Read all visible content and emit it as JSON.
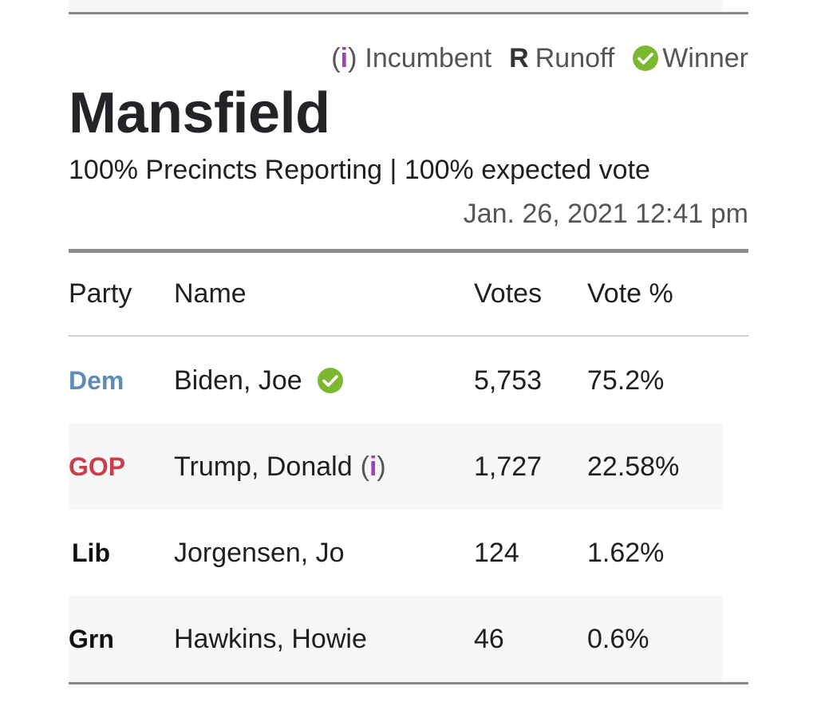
{
  "legend": {
    "incumbent_open": "(",
    "incumbent_symbol": "i",
    "incumbent_close": ")",
    "incumbent_label": "Incumbent",
    "runoff_symbol": "R",
    "runoff_label": "Runoff",
    "winner_icon": "check-circle-icon",
    "winner_label": "Winner"
  },
  "header": {
    "title": "Mansfield",
    "reporting": "100% Precincts Reporting | 100% expected vote",
    "timestamp": "Jan. 26, 2021 12:41 pm"
  },
  "table": {
    "columns": [
      "Party",
      "Name",
      "Votes",
      "Vote %"
    ],
    "rows": [
      {
        "party": "Dem",
        "name": "Biden, Joe",
        "winner": true,
        "incumbent": false,
        "votes": "5,753",
        "pct": "75.2%"
      },
      {
        "party": "GOP",
        "name": "Trump, Donald",
        "winner": false,
        "incumbent": true,
        "votes": "1,727",
        "pct": "22.58%"
      },
      {
        "party": "Lib",
        "name": "Jorgensen, Jo",
        "winner": false,
        "incumbent": false,
        "votes": "124",
        "pct": "1.62%"
      },
      {
        "party": "Grn",
        "name": "Hawkins, Howie",
        "winner": false,
        "incumbent": false,
        "votes": "46",
        "pct": "0.6%"
      }
    ]
  },
  "colors": {
    "dem": "#5b8db8",
    "gop": "#c83f4a",
    "winner_check": "#7cb82f",
    "incumbent_i": "#a23ec0",
    "rule": "#8a8a8a"
  }
}
